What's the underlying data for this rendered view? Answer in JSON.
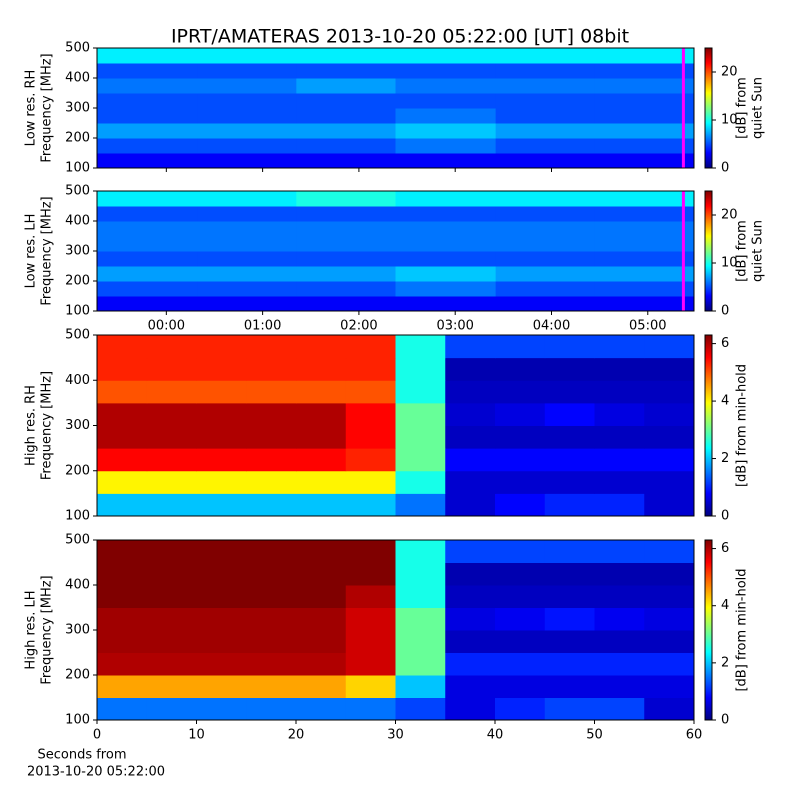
{
  "title": "IPRT/AMATERAS 2013-10-20 05:22:00 [UT]   08bit",
  "chart_data": [
    {
      "type": "heatmap",
      "ylabel": [
        "Low res. RH",
        "Frequency [MHz]"
      ],
      "clabel": [
        "[dB] from",
        "quiet Sun"
      ],
      "xlim": [
        -0.72,
        5.48
      ],
      "ylim": [
        100,
        500
      ],
      "yticks": [
        100,
        200,
        300,
        400,
        500
      ],
      "clim": [
        0,
        25
      ],
      "cticks": [
        0,
        10,
        20
      ],
      "x_bins": [
        -0.72,
        0.32,
        1.35,
        2.38,
        3.42,
        4.45,
        5.48
      ],
      "y_bins": [
        100,
        150,
        200,
        250,
        300,
        350,
        400,
        450,
        500
      ],
      "z": [
        [
          3,
          3,
          3,
          3,
          3,
          3
        ],
        [
          5,
          5,
          5,
          6,
          5,
          5
        ],
        [
          7,
          7,
          7,
          8,
          7,
          7
        ],
        [
          5,
          5,
          5,
          6,
          5,
          5
        ],
        [
          5,
          5,
          5,
          5,
          5,
          5
        ],
        [
          6,
          6,
          7,
          6,
          6,
          6
        ],
        [
          5,
          5,
          5,
          5,
          5,
          5
        ],
        [
          9,
          9,
          9,
          9,
          9,
          9
        ]
      ],
      "cursor": {
        "x": 5.37,
        "color": "#ff00ff"
      }
    },
    {
      "type": "heatmap",
      "ylabel": [
        "Low res. LH",
        "Frequency [MHz]"
      ],
      "clabel": [
        "[dB] from",
        "quiet Sun"
      ],
      "xlim": [
        -0.72,
        5.48
      ],
      "ylim": [
        100,
        500
      ],
      "yticks": [
        100,
        200,
        300,
        400,
        500
      ],
      "xticks": [
        {
          "value": 0,
          "label": "00:00"
        },
        {
          "value": 1,
          "label": "01:00"
        },
        {
          "value": 2,
          "label": "02:00"
        },
        {
          "value": 3,
          "label": "03:00"
        },
        {
          "value": 4,
          "label": "04:00"
        },
        {
          "value": 5,
          "label": "05:00"
        }
      ],
      "clim": [
        0,
        25
      ],
      "cticks": [
        0,
        10,
        20
      ],
      "x_bins": [
        -0.72,
        0.32,
        1.35,
        2.38,
        3.42,
        4.45,
        5.48
      ],
      "y_bins": [
        100,
        150,
        200,
        250,
        300,
        350,
        400,
        450,
        500
      ],
      "z": [
        [
          3,
          3,
          3,
          3,
          3,
          3
        ],
        [
          5,
          5,
          5,
          6,
          5,
          5
        ],
        [
          7,
          7,
          7,
          8,
          7,
          7
        ],
        [
          5,
          5,
          5,
          5,
          5,
          5
        ],
        [
          6,
          6,
          6,
          6,
          6,
          6
        ],
        [
          6,
          6,
          6,
          6,
          6,
          6
        ],
        [
          5,
          5,
          5,
          5,
          5,
          5
        ],
        [
          9,
          9,
          10,
          9,
          9,
          9
        ]
      ],
      "cursor": {
        "x": 5.37,
        "color": "#ff00ff"
      }
    },
    {
      "type": "heatmap",
      "ylabel": [
        "High res. RH",
        "Frequency [MHz]"
      ],
      "clabel": [
        "[dB] from min-hold"
      ],
      "xlim": [
        0,
        60
      ],
      "ylim": [
        100,
        500
      ],
      "yticks": [
        100,
        200,
        300,
        400,
        500
      ],
      "clim": [
        0,
        6.3
      ],
      "cticks": [
        0,
        2,
        4,
        6
      ],
      "x_bins": [
        0,
        5,
        10,
        15,
        20,
        25,
        30,
        35,
        40,
        45,
        50,
        55,
        60
      ],
      "y_bins": [
        100,
        150,
        200,
        250,
        300,
        350,
        400,
        450,
        500
      ],
      "z": [
        [
          2,
          2,
          2,
          2,
          2,
          2,
          1.5,
          0.5,
          0.8,
          1,
          1,
          0.5
        ],
        [
          4,
          4,
          4,
          4,
          4,
          4,
          2.5,
          0.5,
          0.5,
          0.5,
          0.5,
          0.5
        ],
        [
          5.5,
          5.5,
          5.5,
          5.5,
          5.5,
          5.3,
          3,
          0.8,
          0.8,
          0.8,
          0.8,
          0.8
        ],
        [
          6,
          6,
          6,
          6,
          6,
          5.5,
          3,
          0.4,
          0.4,
          0.4,
          0.4,
          0.4
        ],
        [
          6,
          6,
          6,
          6,
          6,
          5.5,
          3,
          0.5,
          0.6,
          0.8,
          0.6,
          0.5
        ],
        [
          5,
          5,
          5,
          5,
          5,
          5,
          2.5,
          0.4,
          0.4,
          0.4,
          0.4,
          0.4
        ],
        [
          5.3,
          5.3,
          5.3,
          5.3,
          5.3,
          5.3,
          2.5,
          0.3,
          0.3,
          0.3,
          0.3,
          0.3
        ],
        [
          5.3,
          5.3,
          5.3,
          5.3,
          5.3,
          5.3,
          2.5,
          1.2,
          1.2,
          1.2,
          1.2,
          1.2
        ]
      ]
    },
    {
      "type": "heatmap",
      "ylabel": [
        "High res. LH",
        "Frequency [MHz]"
      ],
      "clabel": [
        "[dB] from min-hold"
      ],
      "xlabel": [
        "Seconds from",
        "2013-10-20 05:22:00"
      ],
      "xlim": [
        0,
        60
      ],
      "ylim": [
        100,
        500
      ],
      "yticks": [
        100,
        200,
        300,
        400,
        500
      ],
      "xticks": [
        0,
        10,
        20,
        30,
        40,
        50,
        60
      ],
      "clim": [
        0,
        6.3
      ],
      "cticks": [
        0,
        2,
        4,
        6
      ],
      "x_bins": [
        0,
        5,
        10,
        15,
        20,
        25,
        30,
        35,
        40,
        45,
        50,
        55,
        60
      ],
      "y_bins": [
        100,
        150,
        200,
        250,
        300,
        350,
        400,
        450,
        500
      ],
      "z": [
        [
          1.5,
          1.5,
          1.5,
          1.5,
          1.5,
          1.5,
          1.2,
          0.6,
          1,
          1.2,
          1.2,
          0.5
        ],
        [
          4.5,
          4.5,
          4.5,
          4.5,
          4.5,
          4.2,
          2,
          0.6,
          0.6,
          0.6,
          0.6,
          0.6
        ],
        [
          6,
          6,
          6,
          6,
          6,
          5.8,
          3,
          1,
          1,
          1,
          1,
          1
        ],
        [
          6.1,
          6.1,
          6.1,
          6.1,
          6.1,
          5.8,
          3,
          0.4,
          0.4,
          0.4,
          0.4,
          0.4
        ],
        [
          6.1,
          6.1,
          6.1,
          6.1,
          6.1,
          5.8,
          3,
          0.6,
          0.7,
          0.9,
          0.7,
          0.6
        ],
        [
          6.3,
          6.3,
          6.3,
          6.3,
          6.3,
          6,
          2.5,
          0.4,
          0.4,
          0.4,
          0.4,
          0.4
        ],
        [
          6.3,
          6.3,
          6.3,
          6.3,
          6.3,
          6.3,
          2.5,
          0.3,
          0.3,
          0.3,
          0.3,
          0.3
        ],
        [
          6.3,
          6.3,
          6.3,
          6.3,
          6.3,
          6.3,
          2.5,
          1.2,
          1.2,
          1.2,
          1.2,
          1.2
        ]
      ]
    }
  ]
}
